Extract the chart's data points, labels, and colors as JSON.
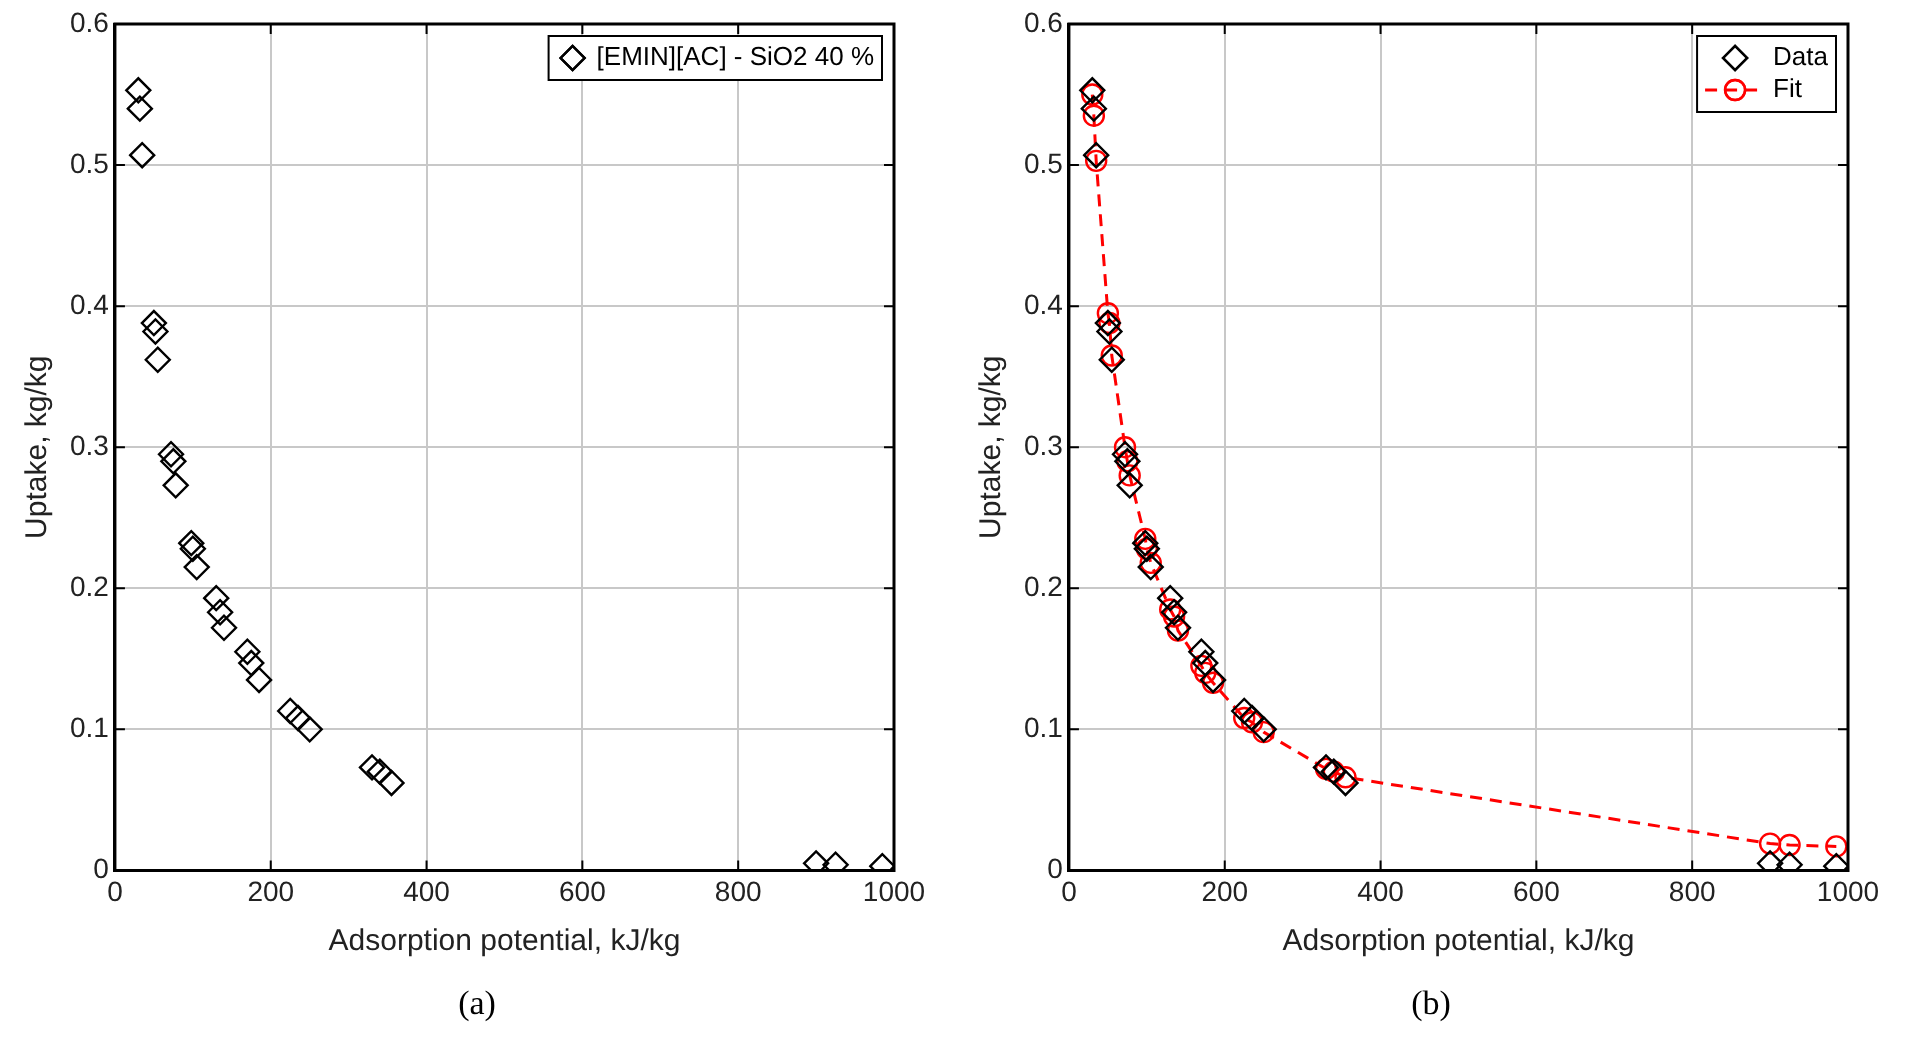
{
  "chart_data": [
    {
      "type": "scatter",
      "xlabel": "Adsorption potential, kJ/kg",
      "ylabel": "Uptake, kg/kg",
      "xlim": [
        0,
        1000
      ],
      "ylim": [
        0,
        0.6
      ],
      "xticks": [
        0,
        200,
        400,
        600,
        800,
        1000
      ],
      "yticks": [
        0,
        0.1,
        0.2,
        0.3,
        0.4,
        0.5,
        0.6
      ],
      "grid": true,
      "legend": "top right",
      "annotations": [
        "(a)"
      ],
      "series": [
        {
          "name": "[EMIN][AC] - SiO2 40 %",
          "color": "#000000",
          "marker": "diamond",
          "x": [
            30,
            32,
            35,
            50,
            52,
            55,
            72,
            75,
            78,
            98,
            100,
            105,
            130,
            135,
            140,
            170,
            175,
            185,
            225,
            235,
            250,
            330,
            340,
            355,
            900,
            925,
            985
          ],
          "values": [
            0.553,
            0.54,
            0.507,
            0.388,
            0.382,
            0.362,
            0.295,
            0.29,
            0.273,
            0.232,
            0.228,
            0.215,
            0.193,
            0.183,
            0.172,
            0.155,
            0.147,
            0.135,
            0.113,
            0.108,
            0.1,
            0.073,
            0.07,
            0.062,
            0.005,
            0.004,
            0.003
          ]
        }
      ]
    },
    {
      "type": "scatter",
      "xlabel": "Adsorption potential, kJ/kg",
      "ylabel": "Uptake, kg/kg",
      "xlim": [
        0,
        1000
      ],
      "ylim": [
        0,
        0.6
      ],
      "xticks": [
        0,
        200,
        400,
        600,
        800,
        1000
      ],
      "yticks": [
        0,
        0.1,
        0.2,
        0.3,
        0.4,
        0.5,
        0.6
      ],
      "grid": true,
      "legend": "top right",
      "annotations": [
        "(b)"
      ],
      "series": [
        {
          "name": "Data",
          "color": "#000000",
          "marker": "diamond",
          "x": [
            30,
            32,
            35,
            50,
            52,
            55,
            72,
            75,
            78,
            98,
            100,
            105,
            130,
            135,
            140,
            170,
            175,
            185,
            225,
            235,
            250,
            330,
            340,
            355,
            900,
            925,
            985
          ],
          "values": [
            0.553,
            0.54,
            0.507,
            0.388,
            0.382,
            0.362,
            0.295,
            0.29,
            0.273,
            0.232,
            0.228,
            0.215,
            0.193,
            0.183,
            0.172,
            0.155,
            0.147,
            0.135,
            0.113,
            0.108,
            0.1,
            0.073,
            0.07,
            0.062,
            0.005,
            0.004,
            0.003
          ]
        },
        {
          "name": "Fit",
          "type": "line",
          "color": "#ff0000",
          "marker": "circle",
          "line_style": "dashed",
          "x": [
            30,
            32,
            35,
            50,
            52,
            55,
            72,
            75,
            78,
            98,
            100,
            105,
            130,
            135,
            140,
            170,
            175,
            185,
            225,
            235,
            250,
            330,
            340,
            355,
            900,
            925,
            985
          ],
          "values": [
            0.55,
            0.535,
            0.503,
            0.395,
            0.388,
            0.365,
            0.3,
            0.29,
            0.28,
            0.235,
            0.228,
            0.218,
            0.185,
            0.18,
            0.17,
            0.145,
            0.14,
            0.133,
            0.108,
            0.105,
            0.098,
            0.072,
            0.07,
            0.066,
            0.019,
            0.018,
            0.017
          ]
        }
      ]
    }
  ]
}
